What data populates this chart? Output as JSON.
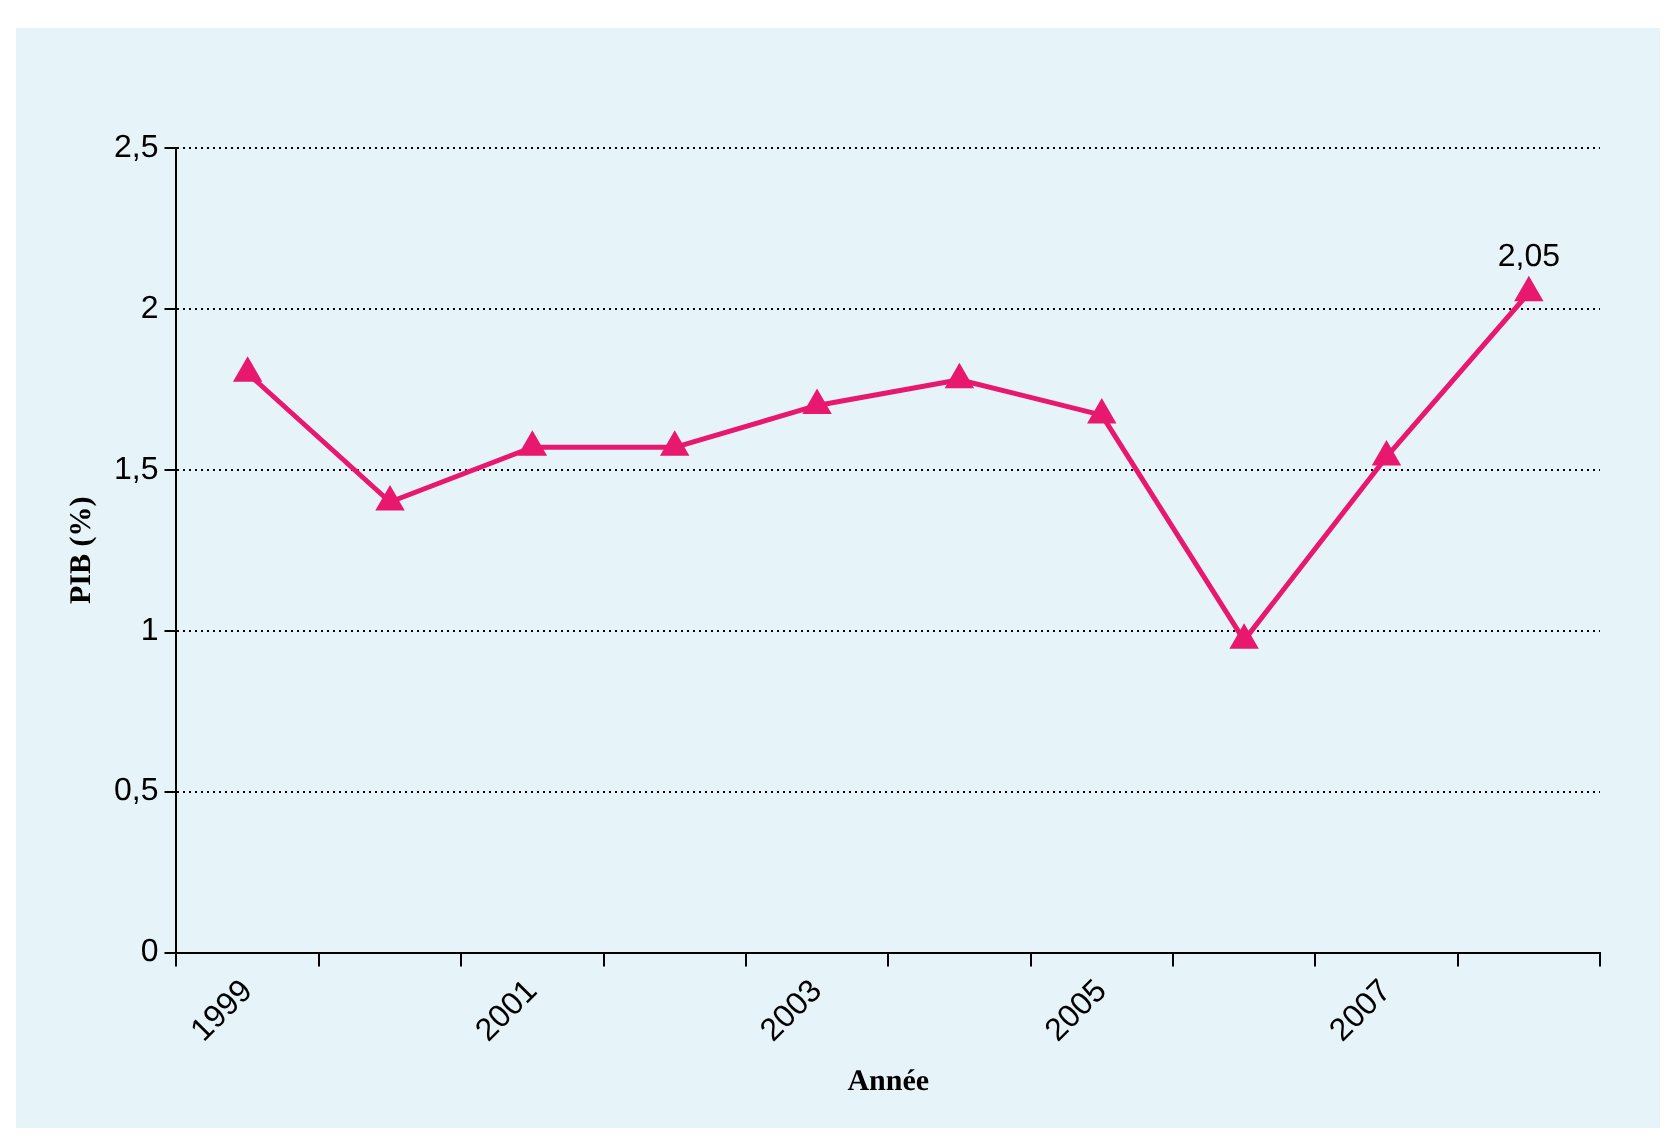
{
  "chart_data": {
    "type": "line",
    "xlabel": "Année",
    "ylabel": "PIB (%)",
    "categories": [
      "1999",
      null,
      "2001",
      null,
      "2003",
      null,
      "2005",
      null,
      "2007",
      null
    ],
    "series": [
      {
        "color": "#e8186e",
        "values": [
          1.8,
          1.4,
          1.57,
          1.57,
          1.7,
          1.78,
          1.67,
          0.97,
          1.54,
          2.05
        ],
        "value_labels": [
          null,
          null,
          null,
          null,
          null,
          null,
          null,
          null,
          null,
          "2,05"
        ]
      }
    ],
    "ylim": [
      0,
      2.5
    ],
    "yticks": [
      0,
      {
        "value": 0.5,
        "label": "0,5"
      },
      1,
      {
        "value": 1.5,
        "label": "1,5"
      },
      2,
      {
        "value": 2.5,
        "label": "2,5"
      }
    ],
    "grid": "y",
    "legend": false,
    "marker": "triangle",
    "line_style": "solid"
  }
}
